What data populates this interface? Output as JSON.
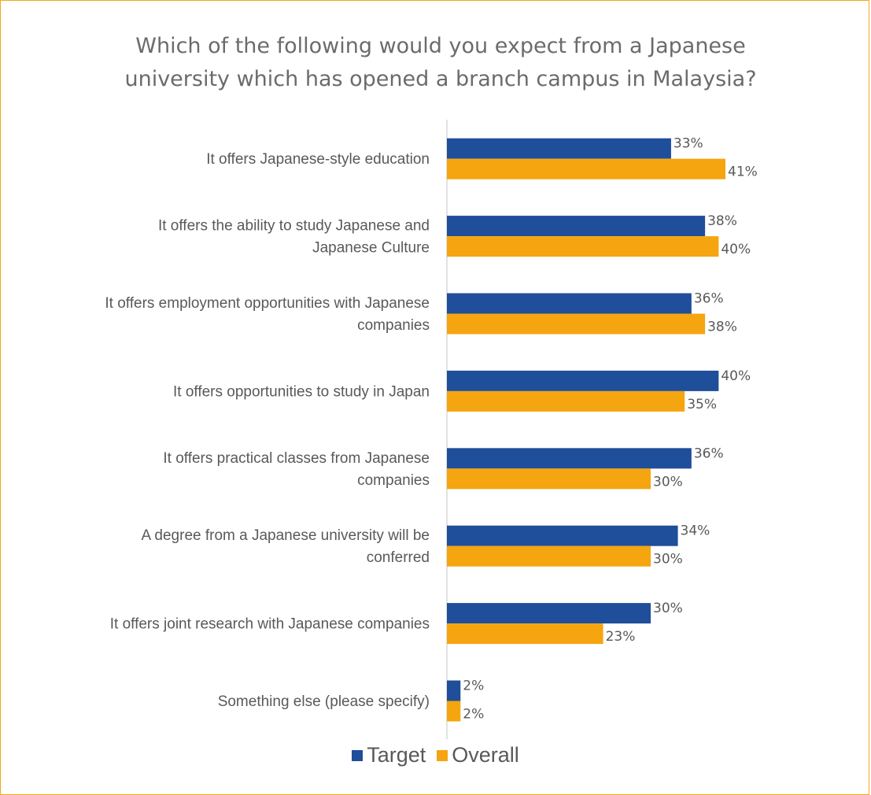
{
  "chart_data": {
    "type": "bar",
    "orientation": "horizontal",
    "title_lines": [
      "Which of the following would you expect from a Japanese",
      "university which has opened a branch campus in Malaysia?"
    ],
    "categories": [
      [
        "It offers Japanese-style education"
      ],
      [
        "It offers the ability to study Japanese and",
        "Japanese Culture"
      ],
      [
        "It offers employment opportunities with Japanese",
        "companies"
      ],
      [
        "It offers opportunities to study in Japan"
      ],
      [
        "It offers practical classes from Japanese",
        "companies"
      ],
      [
        "A degree from a Japanese university will be",
        "conferred"
      ],
      [
        "It offers joint research with Japanese companies"
      ],
      [
        "Something else (please specify)"
      ]
    ],
    "series": [
      {
        "name": "Target",
        "color": "#1F4E9A",
        "values": [
          33,
          38,
          36,
          40,
          36,
          34,
          30,
          2
        ]
      },
      {
        "name": "Overall",
        "color": "#F5A50F",
        "values": [
          41,
          40,
          38,
          35,
          30,
          30,
          23,
          2
        ]
      }
    ],
    "value_suffix": "%",
    "xlim": [
      0,
      50
    ],
    "grid": false,
    "legend_position": "bottom"
  }
}
